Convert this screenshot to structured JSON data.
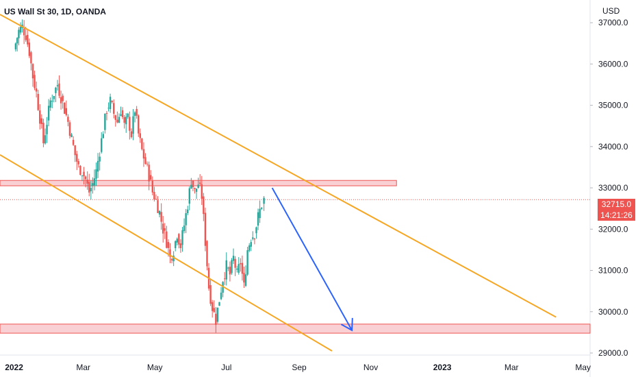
{
  "title": "US Wall St 30, 1D, OANDA",
  "currency": "USD",
  "last_price": "32715.0",
  "countdown": "14:21:26",
  "colors": {
    "up": "#26a69a",
    "down": "#ef5350",
    "trendline": "#f5a623",
    "arrow": "#2962ff",
    "zone_fill": "#f8c8cc",
    "zone_stroke": "#ef5350"
  },
  "chart_data": {
    "type": "candlestick",
    "symbol": "US Wall St 30",
    "interval": "1D",
    "source": "OANDA",
    "y_ticks": [
      29000,
      30000,
      31000,
      32000,
      33000,
      34000,
      35000,
      36000,
      37000
    ],
    "y_tick_labels": [
      "29000.0",
      "30000.0",
      "31000.0",
      "32000.0",
      "33000.0",
      "34000.0",
      "35000.0",
      "36000.0",
      "37000.0"
    ],
    "ylim": [
      28950,
      37550
    ],
    "x_tick_labels": [
      "2022",
      "Mar",
      "May",
      "Jul",
      "Sep",
      "Nov",
      "2023",
      "Mar",
      "May"
    ],
    "x_tick_days": [
      0,
      59,
      120,
      181,
      243,
      304,
      365,
      424,
      485
    ],
    "xlim": [
      -12,
      491
    ],
    "close_series": [
      [
        0,
        36350
      ],
      [
        4,
        36800
      ],
      [
        7,
        36900
      ],
      [
        10,
        36700
      ],
      [
        13,
        36300
      ],
      [
        16,
        35700
      ],
      [
        19,
        35300
      ],
      [
        22,
        34700
      ],
      [
        25,
        34100
      ],
      [
        28,
        34600
      ],
      [
        31,
        35100
      ],
      [
        34,
        35300
      ],
      [
        37,
        35500
      ],
      [
        40,
        35200
      ],
      [
        43,
        34900
      ],
      [
        46,
        34600
      ],
      [
        49,
        34200
      ],
      [
        52,
        33800
      ],
      [
        55,
        33500
      ],
      [
        58,
        33400
      ],
      [
        61,
        33200
      ],
      [
        64,
        32900
      ],
      [
        67,
        33100
      ],
      [
        70,
        33400
      ],
      [
        73,
        33900
      ],
      [
        76,
        34400
      ],
      [
        79,
        34900
      ],
      [
        82,
        35100
      ],
      [
        85,
        34800
      ],
      [
        88,
        34600
      ],
      [
        91,
        34900
      ],
      [
        94,
        34500
      ],
      [
        97,
        34700
      ],
      [
        100,
        34300
      ],
      [
        103,
        34900
      ],
      [
        106,
        34300
      ],
      [
        109,
        33900
      ],
      [
        112,
        33600
      ],
      [
        115,
        33300
      ],
      [
        118,
        32900
      ],
      [
        121,
        32700
      ],
      [
        124,
        32400
      ],
      [
        127,
        32000
      ],
      [
        130,
        31700
      ],
      [
        133,
        31300
      ],
      [
        136,
        31500
      ],
      [
        139,
        31900
      ],
      [
        142,
        31600
      ],
      [
        145,
        32100
      ],
      [
        148,
        32600
      ],
      [
        151,
        33200
      ],
      [
        154,
        32900
      ],
      [
        157,
        33100
      ],
      [
        160,
        32800
      ],
      [
        163,
        31700
      ],
      [
        166,
        30600
      ],
      [
        169,
        30100
      ],
      [
        172,
        29800
      ],
      [
        175,
        30300
      ],
      [
        178,
        30800
      ],
      [
        181,
        31100
      ],
      [
        184,
        30900
      ],
      [
        187,
        31300
      ],
      [
        190,
        30900
      ],
      [
        193,
        31200
      ],
      [
        196,
        30600
      ],
      [
        199,
        31500
      ],
      [
        202,
        31800
      ],
      [
        205,
        31900
      ],
      [
        208,
        32300
      ],
      [
        211,
        32600
      ],
      [
        213,
        32715
      ]
    ],
    "trendline_upper": {
      "start": [
        -12,
        37200
      ],
      "end": [
        462,
        29870
      ]
    },
    "trendline_lower": {
      "start": [
        -12,
        33800
      ],
      "end": [
        271,
        29050
      ]
    },
    "resistance_zone": {
      "x_start": -12,
      "x_end": 326,
      "y_low": 33050,
      "y_high": 33180
    },
    "support_zone": {
      "x_start": -12,
      "x_end": 491,
      "y_low": 29480,
      "y_high": 29700
    },
    "projection_arrow": {
      "start": [
        220,
        33000
      ],
      "end": [
        288,
        29550
      ]
    },
    "last_price_value": 32715
  }
}
